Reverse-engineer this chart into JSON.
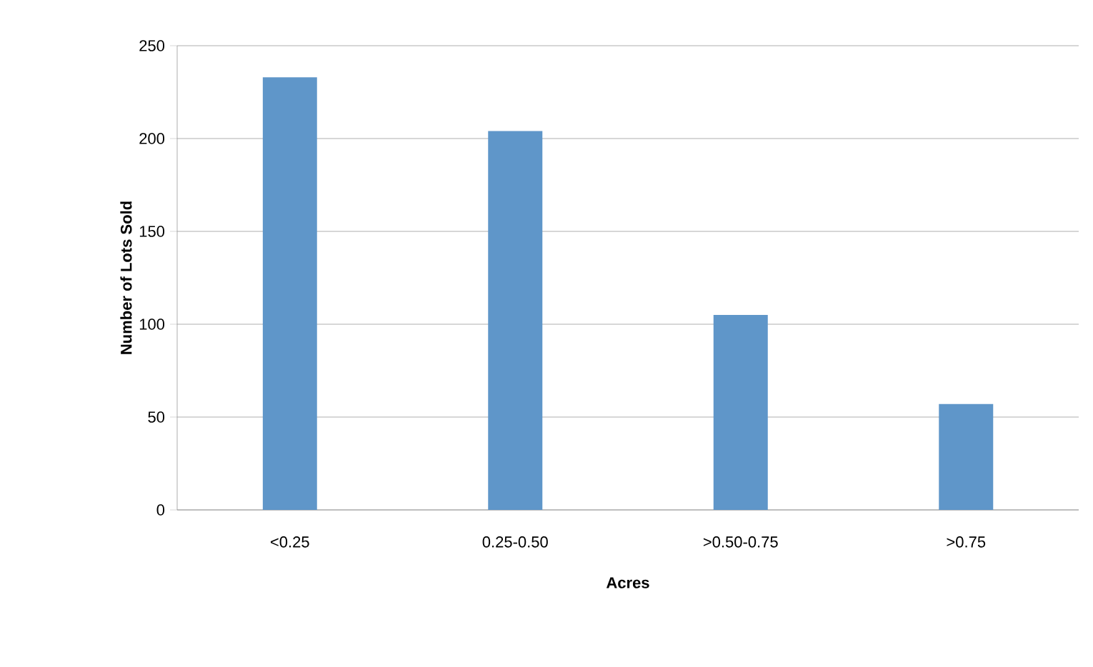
{
  "chart_data": {
    "type": "bar",
    "xlabel": "Acres",
    "ylabel": "Number of Lots Sold",
    "categories": [
      "<0.25",
      "0.25-0.50",
      ">0.50-0.75",
      ">0.75"
    ],
    "values": [
      233,
      204,
      105,
      57
    ],
    "color": "#5f96c9",
    "ylim": [
      0,
      250
    ],
    "yticks": [
      0,
      50,
      100,
      150,
      200,
      250
    ],
    "grid": "y"
  }
}
